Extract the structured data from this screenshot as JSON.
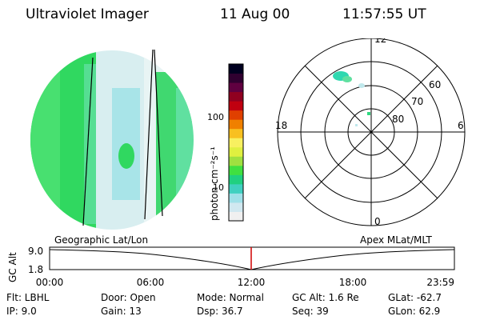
{
  "header": {
    "instrument": "Ultraviolet Imager",
    "date": "11 Aug 00",
    "time": "11:57:55 UT"
  },
  "colorbar": {
    "unit_label": "photon cm⁻²s⁻¹",
    "tick_100": "100",
    "tick_10": "10",
    "colors": [
      "#f0f0f0",
      "#d0e8f0",
      "#9fe0e8",
      "#40d0c0",
      "#20d080",
      "#40e040",
      "#a0e040",
      "#e0f040",
      "#f8f060",
      "#f8c020",
      "#f08000",
      "#e04000",
      "#c00010",
      "#900020",
      "#600040",
      "#300030",
      "#000020"
    ]
  },
  "polar_plot": {
    "mlt_top": "12",
    "mlt_bottom": "0",
    "mlt_left": "18",
    "mlt_right": "6",
    "lat_60": "60",
    "lat_70": "70",
    "lat_80": "80"
  },
  "timeline": {
    "left_label": "Geographic Lat/Lon",
    "right_label": "Apex MLat/MLT",
    "axis_title": "GC Alt",
    "y_top": "9.0",
    "y_bottom": "1.8",
    "x_ticks": [
      "00:00",
      "06:00",
      "12:00",
      "18:00",
      "23:59"
    ],
    "marker_color": "#d00000"
  },
  "footer": {
    "flt": "Flt: LBHL",
    "door": "Door: Open",
    "mode": "Mode: Normal",
    "gcalt": "GC Alt: 1.6 Re",
    "glat": "GLat: -62.7",
    "ip": "IP:  9.0",
    "gain": "Gain: 13",
    "dsp": "Dsp:   36.7",
    "seq": "Seq: 39",
    "glon": "GLon:  62.9"
  }
}
